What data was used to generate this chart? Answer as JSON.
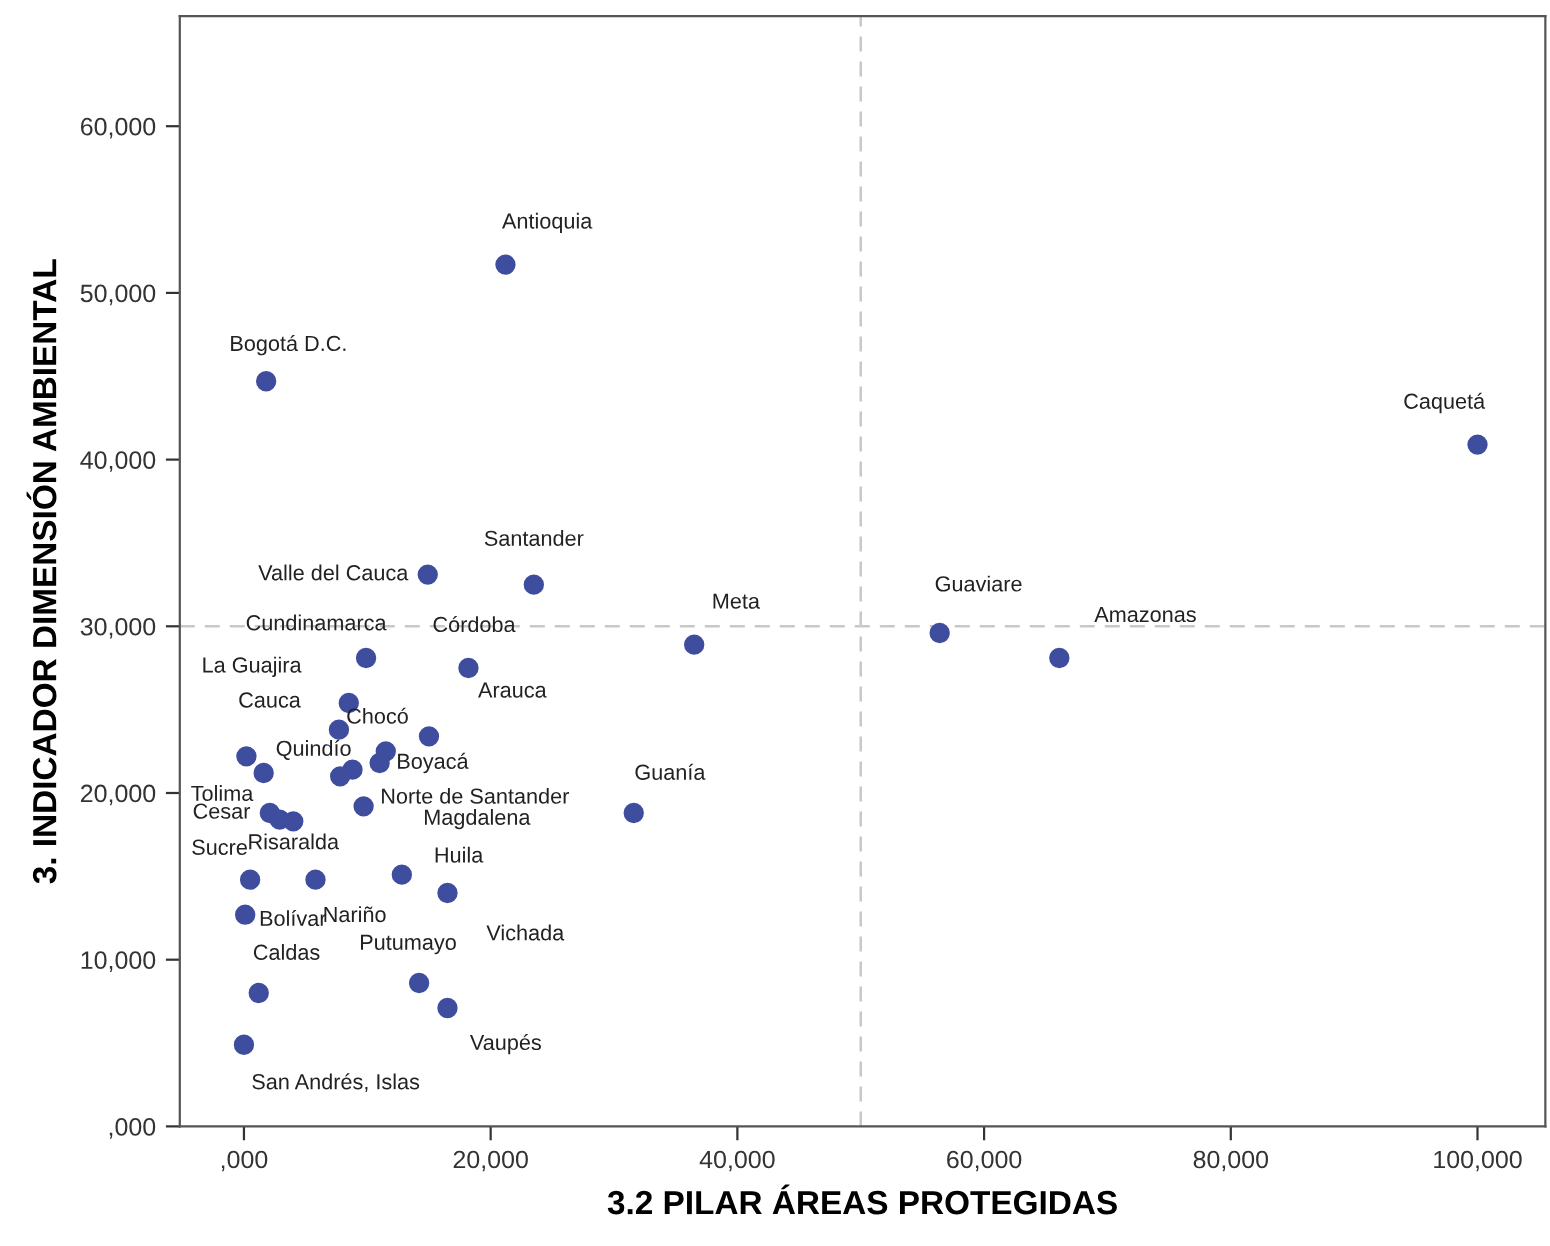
{
  "chart_data": {
    "type": "scatter",
    "xlabel": "3.2 PILAR ÁREAS PROTEGIDAS",
    "ylabel": "3. INDICADOR DIMENSIÓN AMBIENTAL",
    "x": [
      21200,
      1800,
      100000,
      14900,
      23500,
      36500,
      56400,
      66100,
      9900,
      18200,
      8500,
      7700,
      200,
      1600,
      11500,
      11000,
      8800,
      7800,
      15000,
      9700,
      2100,
      2900,
      4000,
      31600,
      500,
      5800,
      12800,
      16500,
      100,
      1200,
      14200,
      16500,
      0
    ],
    "series": [
      {
        "color": "#3f4d9e",
        "values": [
          51700,
          44700,
          40900,
          33100,
          32500,
          28900,
          29600,
          28100,
          28100,
          27500,
          25400,
          23800,
          22200,
          21200,
          22500,
          21800,
          21400,
          21000,
          23400,
          19200,
          18800,
          18400,
          18300,
          18800,
          14800,
          14800,
          15100,
          14000,
          12700,
          8000,
          8600,
          7100,
          4900
        ]
      }
    ],
    "marker": "circle",
    "xlim": [
      -5200,
      105500
    ],
    "ylim": [
      0,
      66600
    ],
    "xticks": [
      {
        "value": 0,
        "label": ",000"
      },
      {
        "value": 20000,
        "label": "20,000"
      },
      {
        "value": 40000,
        "label": "40,000"
      },
      {
        "value": 60000,
        "label": "60,000"
      },
      {
        "value": 80000,
        "label": "80,000"
      },
      {
        "value": 100000,
        "label": "100,000"
      }
    ],
    "yticks": [
      {
        "value": 0,
        "label": ",000"
      },
      {
        "value": 10000,
        "label": "10,000"
      },
      {
        "value": 20000,
        "label": "20,000"
      },
      {
        "value": 30000,
        "label": "30,000"
      },
      {
        "value": 40000,
        "label": "40,000"
      },
      {
        "value": 50000,
        "label": "50,000"
      },
      {
        "value": 60000,
        "label": "60,000"
      }
    ],
    "grid": false,
    "legend": false,
    "ref_lines": [
      {
        "axis": "x",
        "value": 50000,
        "color": "#c8c8c8",
        "line_style": "dashed"
      },
      {
        "axis": "y",
        "value": 30000,
        "color": "#c8c8c8",
        "line_style": "dashed"
      }
    ],
    "annotations": [
      {
        "text": "Antioquia",
        "x": 21200,
        "y": 51700
      },
      {
        "text": "Bogotá D.C.",
        "x": 1800,
        "y": 44700
      },
      {
        "text": "Caquetá",
        "x": 100000,
        "y": 40900
      },
      {
        "text": "Valle del Cauca",
        "x": 14900,
        "y": 33100
      },
      {
        "text": "Santander",
        "x": 23500,
        "y": 32500
      },
      {
        "text": "Meta",
        "x": 36500,
        "y": 28900
      },
      {
        "text": "Guaviare",
        "x": 56400,
        "y": 29600
      },
      {
        "text": "Amazonas",
        "x": 66100,
        "y": 28100
      },
      {
        "text": "Cundinamarca",
        "x": 9900,
        "y": 28100
      },
      {
        "text": "Córdoba",
        "x": 18200,
        "y": 27500
      },
      {
        "text": "La Guajira",
        "x": 8500,
        "y": 25400
      },
      {
        "text": "Cauca",
        "x": 7700,
        "y": 23800
      },
      {
        "text": "Arauca",
        "x": 15000,
        "y": 23400
      },
      {
        "text": "Chocó",
        "x": 11500,
        "y": 22500
      },
      {
        "text": "Quindío",
        "x": 8800,
        "y": 21400
      },
      {
        "text": "Boyacá",
        "x": 11000,
        "y": 21800
      },
      {
        "text": "Tolima",
        "x": 1600,
        "y": 21200
      },
      {
        "text": "Norte de Santander",
        "x": 9700,
        "y": 19200
      },
      {
        "text": "Cesar",
        "x": 2100,
        "y": 18800
      },
      {
        "text": "Magdalena",
        "x": 12800,
        "y": 15100
      },
      {
        "text": "Guanía",
        "x": 31600,
        "y": 18800
      },
      {
        "text": "Sucre",
        "x": 500,
        "y": 14800
      },
      {
        "text": "Risaralda",
        "x": 5800,
        "y": 14800
      },
      {
        "text": "Huila",
        "x": 16500,
        "y": 14000
      },
      {
        "text": "Nariño",
        "x": 12800,
        "y": 15100
      },
      {
        "text": "Vichada",
        "x": 16500,
        "y": 14000
      },
      {
        "text": "Bolívar",
        "x": 100,
        "y": 12700
      },
      {
        "text": "Caldas",
        "x": 1200,
        "y": 8000
      },
      {
        "text": "Putumayo",
        "x": 14200,
        "y": 8600
      },
      {
        "text": "Vaupés",
        "x": 16500,
        "y": 7100
      },
      {
        "text": "San Andrés, Islas",
        "x": 0,
        "y": 4900
      }
    ]
  }
}
